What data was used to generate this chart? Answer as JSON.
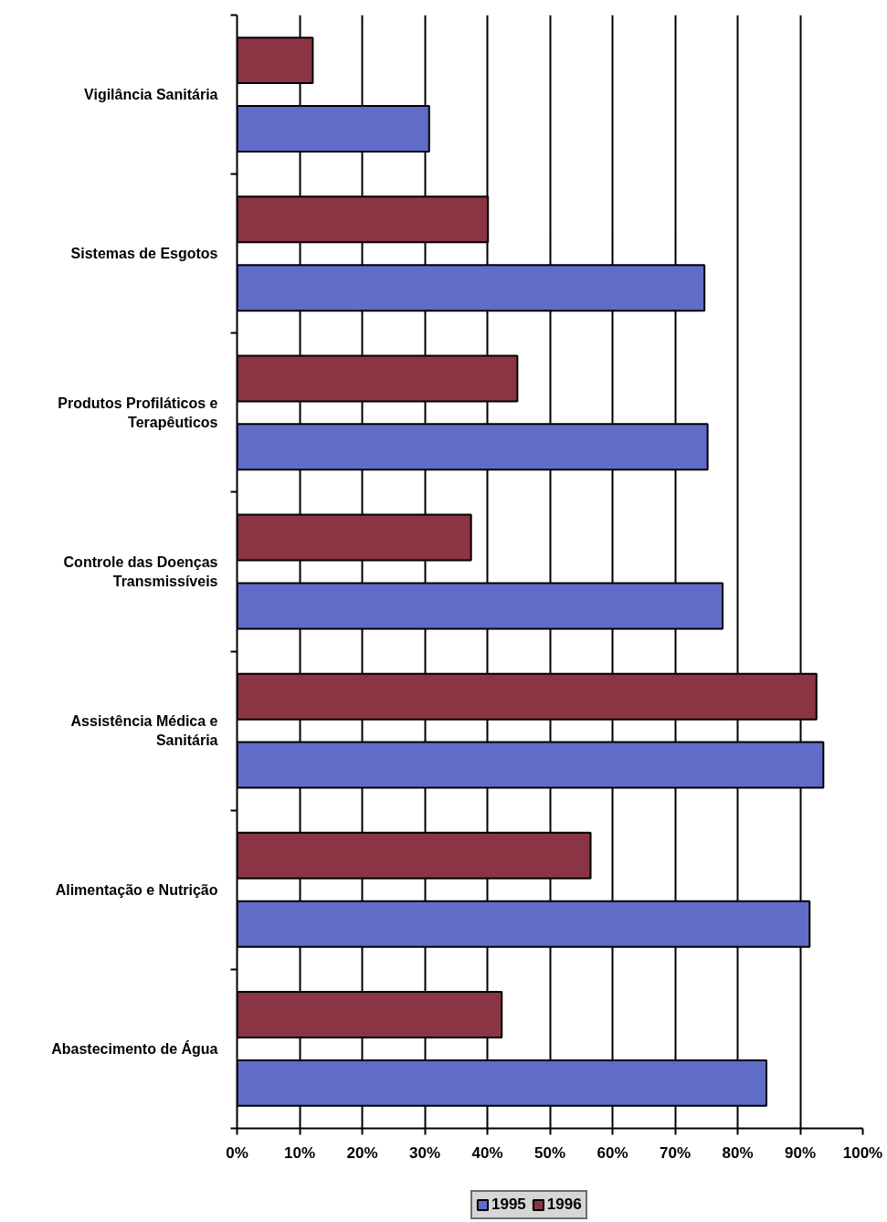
{
  "chart_data": {
    "type": "bar",
    "orientation": "horizontal",
    "categories": [
      "Vigilância Sanitária",
      "Sistemas de Esgotos",
      "Produtos Profiláticos e Terapêuticos",
      "Controle das Doenças Transmissíveis",
      "Assistência Médica e Sanitária",
      "Alimentação e Nutrição",
      "Abastecimento de Água"
    ],
    "series": [
      {
        "name": "1995",
        "color": "#5f6cc8",
        "values": [
          30.7,
          74.7,
          75.2,
          77.6,
          93.7,
          91.5,
          84.6
        ]
      },
      {
        "name": "1996",
        "color": "#8b3444",
        "values": [
          12.1,
          40.1,
          44.8,
          37.4,
          92.6,
          56.5,
          42.3
        ]
      }
    ],
    "xlim": [
      0,
      100
    ],
    "xticks": [
      {
        "value": 0,
        "label": "0%"
      },
      {
        "value": 10,
        "label": "10%"
      },
      {
        "value": 20,
        "label": "20%"
      },
      {
        "value": 30,
        "label": "30%"
      },
      {
        "value": 40,
        "label": "40%"
      },
      {
        "value": 50,
        "label": "50%"
      },
      {
        "value": 60,
        "label": "60%"
      },
      {
        "value": 70,
        "label": "70%"
      },
      {
        "value": 80,
        "label": "80%"
      },
      {
        "value": 90,
        "label": "90%"
      },
      {
        "value": 100,
        "label": "100%"
      }
    ],
    "grid": "x",
    "legend": "bottom"
  }
}
